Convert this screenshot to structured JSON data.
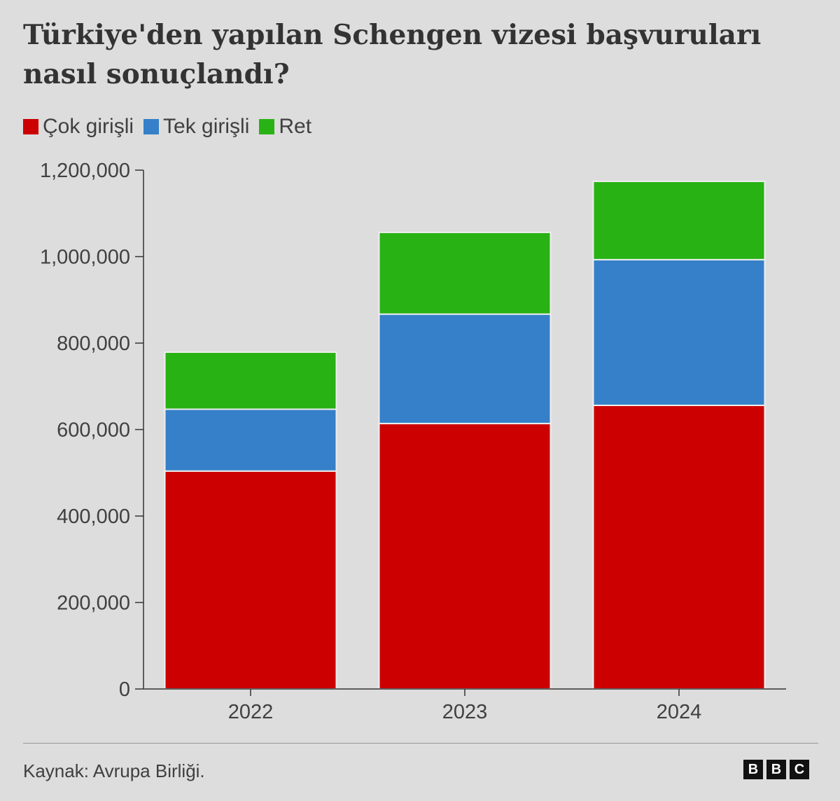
{
  "chart_data": {
    "type": "bar",
    "stacked": true,
    "title": "Türkiye'den yapılan Schengen vizesi başvuruları nasıl sonuçlandı?",
    "categories": [
      "2022",
      "2023",
      "2024"
    ],
    "series": [
      {
        "name": "Çok girişli",
        "color": "#cc0000",
        "values": [
          504000,
          614000,
          656000
        ]
      },
      {
        "name": "Tek girişli",
        "color": "#3580c8",
        "values": [
          143000,
          253000,
          337000
        ]
      },
      {
        "name": "Ret",
        "color": "#28b214",
        "values": [
          132000,
          189000,
          181000
        ]
      }
    ],
    "ylim": [
      0,
      1200000
    ],
    "yticks": [
      0,
      200000,
      400000,
      600000,
      800000,
      1000000,
      1200000
    ],
    "ytick_labels": [
      "0",
      "200,000",
      "400,000",
      "600,000",
      "800,000",
      "1,000,000",
      "1,200,000"
    ],
    "legend": "top-left",
    "grid": false
  },
  "footer": {
    "source": "Kaynak: Avrupa Birliği.",
    "logo": [
      "B",
      "B",
      "C"
    ]
  }
}
